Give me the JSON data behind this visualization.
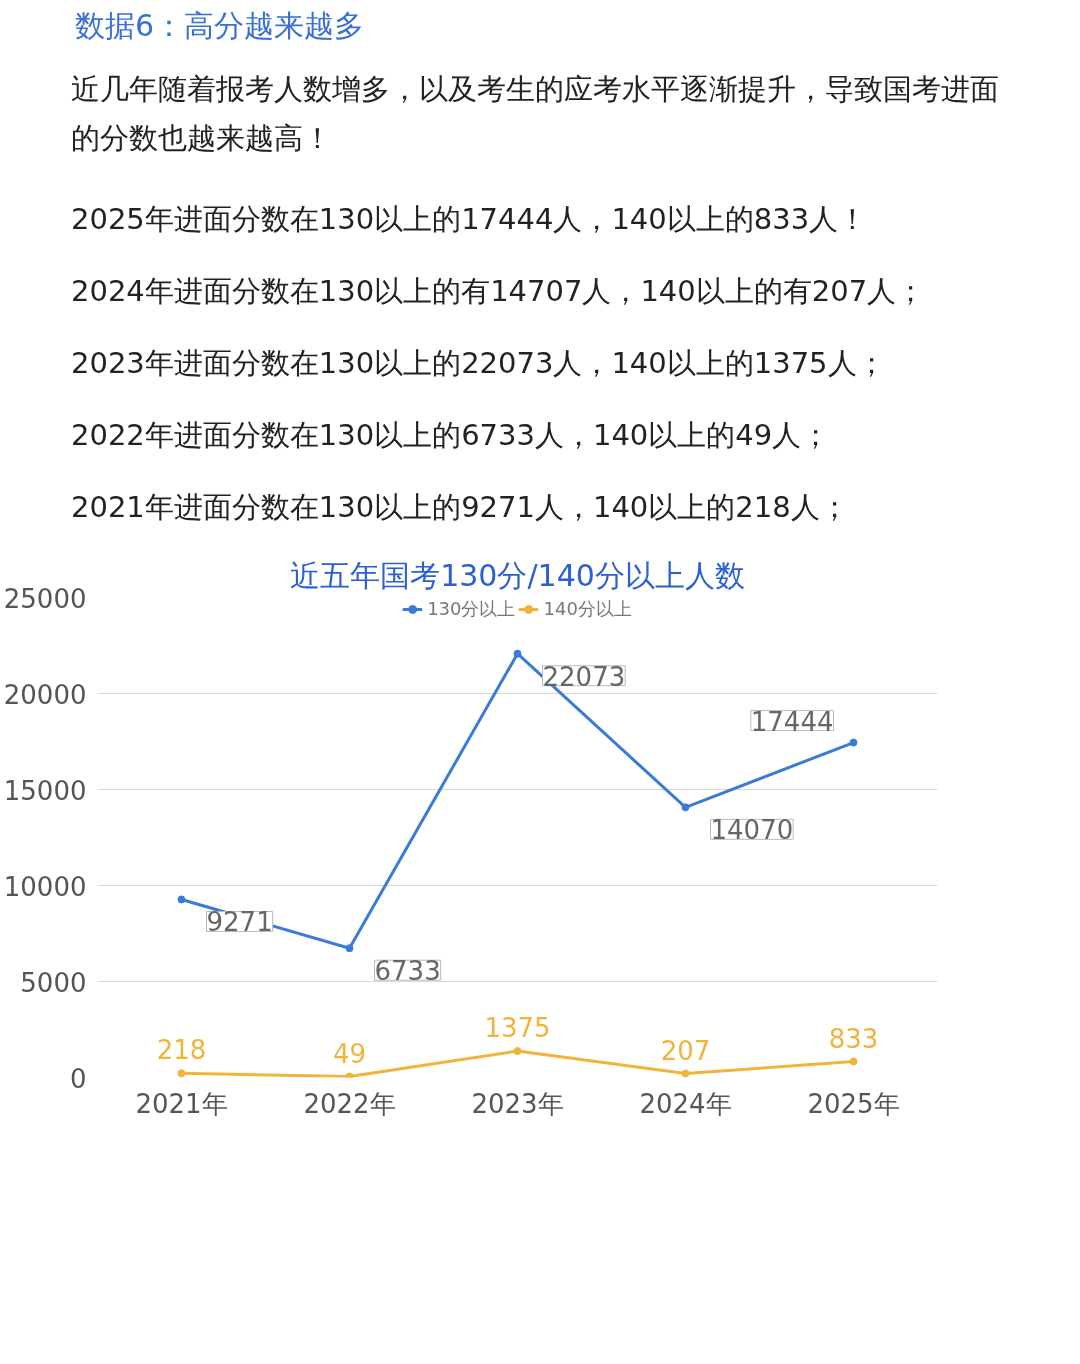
{
  "chart_data": {
    "type": "line",
    "title": "近五年国考130分/140分以上人数",
    "annotations": [
      "数据6：高分越来越多",
      "近几年随着报考人数增多，以及考生的应考水平逐渐提升，导致国考进面的分数也越来越高！",
      "2025年进面分数在130以上的17444人，140以上的833人！",
      "2024年进面分数在130以上的有14707人，140以上的有207人；",
      "2023年进面分数在130以上的22073人，140以上的1375人；",
      "2022年进面分数在130以上的6733人，140以上的49人；",
      "2021年进面分数在130以上的9271人，140以上的218人；"
    ],
    "categories": [
      "2021年",
      "2022年",
      "2023年",
      "2024年",
      "2025年"
    ],
    "series": [
      {
        "name": "130分以上",
        "color": "#3a7bd5",
        "values": [
          9271,
          6733,
          22073,
          14070,
          17444
        ]
      },
      {
        "name": "140分以上",
        "color": "#f0b43c",
        "values": [
          218,
          49,
          1375,
          207,
          833
        ]
      }
    ],
    "ylim": [
      0,
      25000
    ],
    "yticks": [
      0,
      5000,
      10000,
      15000,
      20000,
      25000
    ],
    "grid": "y",
    "legend": "top",
    "marker": "circle",
    "line_style": "solid",
    "data_labels": true
  }
}
